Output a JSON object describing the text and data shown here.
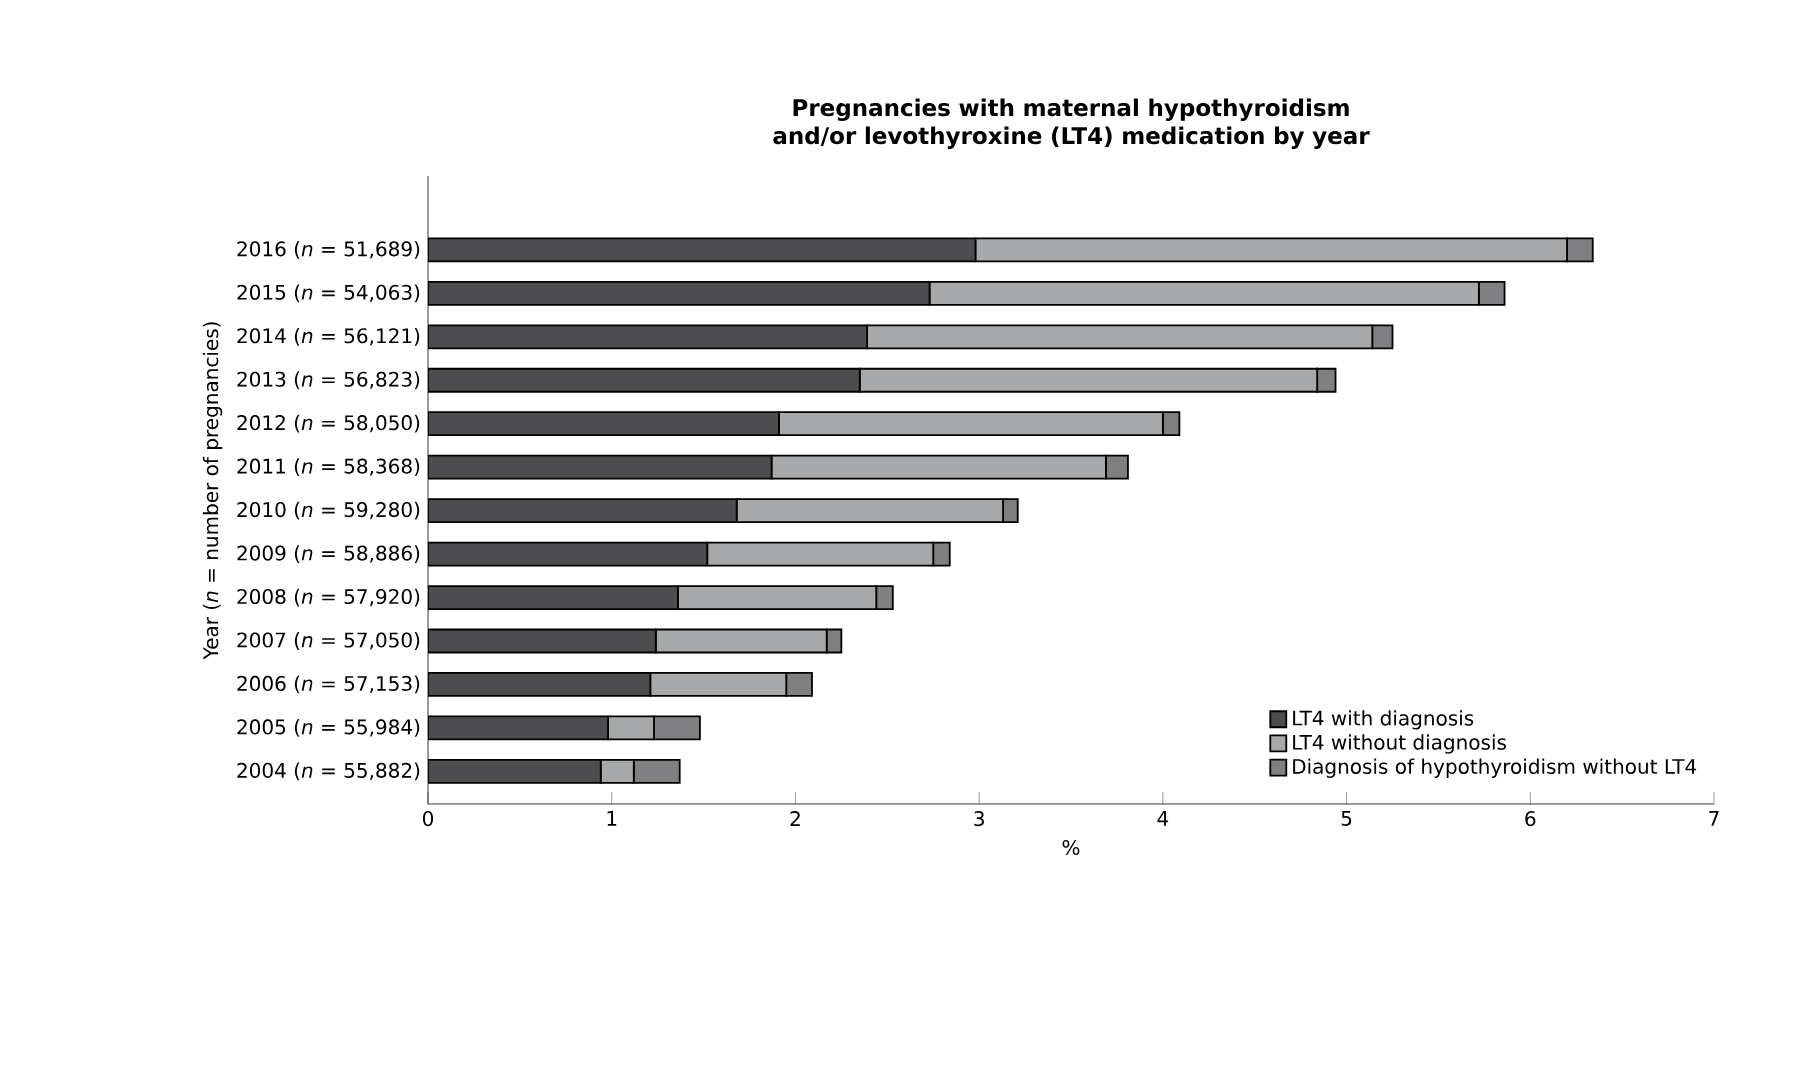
{
  "chart_data": {
    "type": "bar",
    "orientation": "horizontal",
    "stacked": true,
    "title": "Pregnancies with maternal hypothyroidism and/or levothyroxine (LT4) medication by year",
    "xlabel": "%",
    "ylabel": "Year (*n* = number of pregnancies)",
    "categories": [
      "2016 (*n* = 51,689)",
      "2015 (*n* = 54,063)",
      "2014 (*n* = 56,121)",
      "2013 (*n* = 56,823)",
      "2012 (*n* = 58,050)",
      "2011 (*n* = 58,368)",
      "2010 (*n* = 59,280)",
      "2009 (*n* = 58,886)",
      "2008 (*n* = 57,920)",
      "2007 (*n* = 57,050)",
      "2006 (*n* = 57,153)",
      "2005 (*n* = 55,984)",
      "2004 (*n* = 55,882)"
    ],
    "series": [
      {
        "name": "LT4 with diagnosis",
        "color": "#4d4d4f",
        "values": [
          2.98,
          2.73,
          2.39,
          2.35,
          1.91,
          1.87,
          1.68,
          1.52,
          1.36,
          1.24,
          1.21,
          0.98,
          0.94
        ]
      },
      {
        "name": "LT4 without diagnosis",
        "color": "#a7a8aa",
        "values": [
          3.22,
          2.99,
          2.75,
          2.49,
          2.09,
          1.82,
          1.45,
          1.23,
          1.08,
          0.93,
          0.74,
          0.25,
          0.18
        ]
      },
      {
        "name": "Diagnosis of hypothyroidism without LT4",
        "color": "#808083",
        "values": [
          0.14,
          0.14,
          0.11,
          0.1,
          0.09,
          0.12,
          0.08,
          0.09,
          0.09,
          0.08,
          0.14,
          0.25,
          0.25
        ]
      }
    ],
    "xlim": [
      0,
      7
    ],
    "xticks": [
      0,
      1,
      2,
      3,
      4,
      5,
      6,
      7
    ],
    "grid": false,
    "legend": "bottom right"
  }
}
